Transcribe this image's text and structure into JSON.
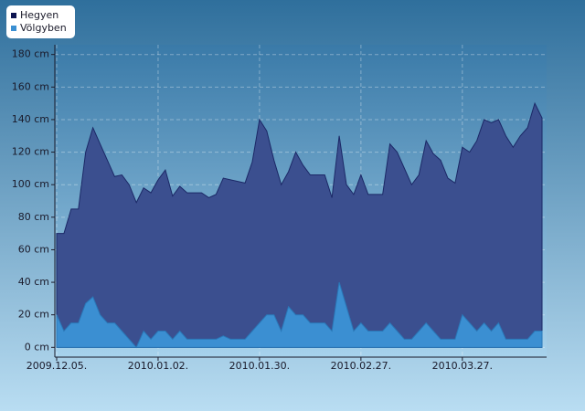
{
  "chart_data": {
    "type": "area",
    "categories": [
      "2009.12.05.",
      null,
      null,
      null,
      null,
      null,
      null,
      null,
      null,
      null,
      null,
      null,
      null,
      null,
      "2010.01.02.",
      null,
      null,
      null,
      null,
      null,
      null,
      null,
      null,
      null,
      null,
      null,
      null,
      null,
      "2010.01.30.",
      null,
      null,
      null,
      null,
      null,
      null,
      null,
      null,
      null,
      null,
      null,
      null,
      null,
      "2010.02.27.",
      null,
      null,
      null,
      null,
      null,
      null,
      null,
      null,
      null,
      null,
      null,
      null,
      null,
      "2010.03.27.",
      null,
      null,
      null,
      null,
      null,
      null,
      null,
      null,
      null,
      null,
      null
    ],
    "series": [
      {
        "name": "Hegyen",
        "color": "#3b4f8f",
        "values": [
          70,
          70,
          85,
          85,
          120,
          135,
          125,
          115,
          105,
          106,
          100,
          89,
          98,
          95,
          103,
          109,
          93,
          99,
          95,
          95,
          95,
          92,
          94,
          104,
          103,
          102,
          101,
          114,
          140,
          133,
          115,
          100,
          108,
          120,
          112,
          106,
          106,
          106,
          92,
          130,
          100,
          94,
          106,
          94,
          94,
          94,
          125,
          120,
          110,
          100,
          106,
          127,
          119,
          115,
          104,
          101,
          123,
          120,
          127,
          140,
          138,
          140,
          130,
          123,
          130,
          135,
          150,
          141
        ]
      },
      {
        "name": "Völgyben",
        "color": "#3b8fd2",
        "values": [
          20,
          10,
          15,
          15,
          27,
          31,
          20,
          15,
          15,
          10,
          5,
          0,
          10,
          5,
          10,
          10,
          5,
          10,
          5,
          5,
          5,
          5,
          5,
          7,
          5,
          5,
          5,
          10,
          15,
          20,
          20,
          10,
          25,
          20,
          20,
          15,
          15,
          15,
          10,
          40,
          25,
          10,
          15,
          10,
          10,
          10,
          15,
          10,
          5,
          5,
          10,
          15,
          10,
          5,
          5,
          5,
          20,
          15,
          10,
          15,
          10,
          15,
          5,
          5,
          5,
          5,
          10,
          10
        ]
      }
    ],
    "ylim": [
      -6,
      186
    ],
    "yticks": [
      {
        "value": 0,
        "label": "0 cm"
      },
      {
        "value": 20,
        "label": "20 cm"
      },
      {
        "value": 40,
        "label": "40 cm"
      },
      {
        "value": 60,
        "label": "60 cm"
      },
      {
        "value": 80,
        "label": "80 cm"
      },
      {
        "value": 100,
        "label": "100 cm"
      },
      {
        "value": 120,
        "label": "120 cm"
      },
      {
        "value": 140,
        "label": "140 cm"
      },
      {
        "value": 160,
        "label": "160 cm"
      },
      {
        "value": 180,
        "label": "180 cm"
      }
    ],
    "grid": true
  }
}
